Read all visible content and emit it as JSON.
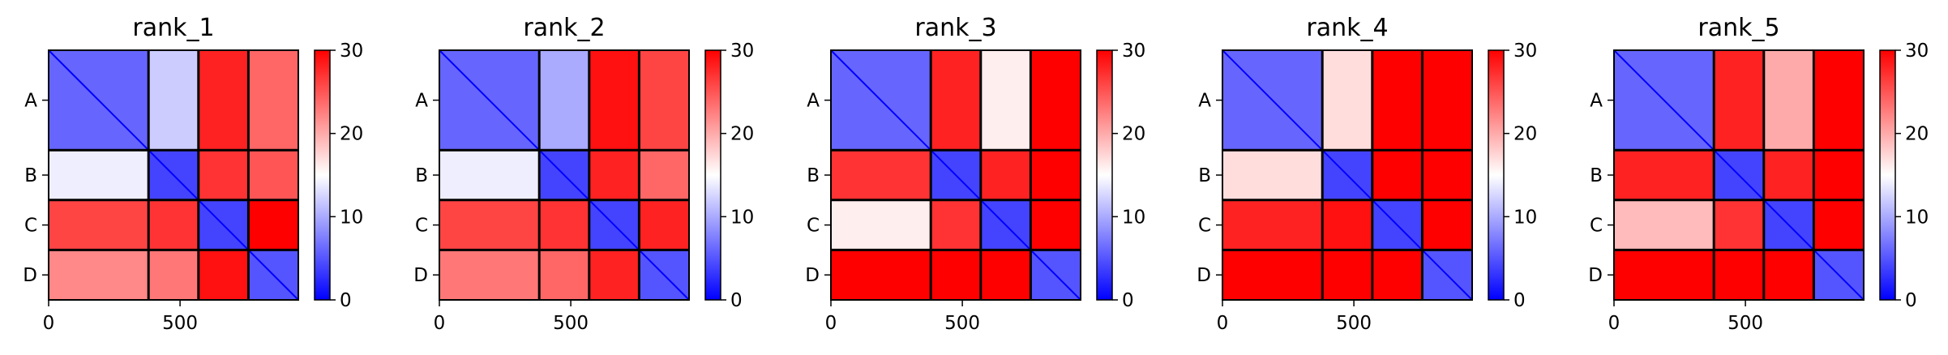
{
  "chart_data": [
    {
      "type": "heatmap",
      "title": "rank_1",
      "blocks": [
        "A",
        "B",
        "C",
        "D"
      ],
      "block_bounds": [
        0,
        380,
        570,
        760,
        950
      ],
      "xticks": [
        0,
        500
      ],
      "xlim": [
        0,
        950
      ],
      "colorbar": {
        "range": [
          0,
          30
        ],
        "ticks": [
          0,
          10,
          20,
          30
        ]
      },
      "block_values": [
        [
          6,
          12,
          28,
          24
        ],
        [
          14,
          4,
          27,
          25
        ],
        [
          26,
          27,
          4,
          30
        ],
        [
          22,
          23,
          29,
          5
        ]
      ]
    },
    {
      "type": "heatmap",
      "title": "rank_2",
      "blocks": [
        "A",
        "B",
        "C",
        "D"
      ],
      "block_bounds": [
        0,
        380,
        570,
        760,
        950
      ],
      "xticks": [
        0,
        500
      ],
      "xlim": [
        0,
        950
      ],
      "colorbar": {
        "range": [
          0,
          30
        ],
        "ticks": [
          0,
          10,
          20,
          30
        ]
      },
      "block_values": [
        [
          6,
          10,
          29,
          26
        ],
        [
          14,
          4,
          28,
          24
        ],
        [
          26,
          27,
          4,
          28
        ],
        [
          23,
          24,
          28,
          5
        ]
      ]
    },
    {
      "type": "heatmap",
      "title": "rank_3",
      "blocks": [
        "A",
        "B",
        "C",
        "D"
      ],
      "block_bounds": [
        0,
        380,
        570,
        760,
        950
      ],
      "xticks": [
        0,
        500
      ],
      "xlim": [
        0,
        950
      ],
      "colorbar": {
        "range": [
          0,
          30
        ],
        "ticks": [
          0,
          10,
          20,
          30
        ]
      },
      "block_values": [
        [
          6,
          28,
          16,
          30
        ],
        [
          27,
          4,
          28,
          30
        ],
        [
          16,
          27,
          4,
          30
        ],
        [
          30,
          30,
          30,
          5
        ]
      ]
    },
    {
      "type": "heatmap",
      "title": "rank_4",
      "blocks": [
        "A",
        "B",
        "C",
        "D"
      ],
      "block_bounds": [
        0,
        380,
        570,
        760,
        950
      ],
      "xticks": [
        0,
        500
      ],
      "xlim": [
        0,
        950
      ],
      "colorbar": {
        "range": [
          0,
          30
        ],
        "ticks": [
          0,
          10,
          20,
          30
        ]
      },
      "block_values": [
        [
          6,
          17,
          30,
          30
        ],
        [
          17,
          4,
          30,
          30
        ],
        [
          28,
          29,
          4,
          30
        ],
        [
          30,
          30,
          30,
          5
        ]
      ]
    },
    {
      "type": "heatmap",
      "title": "rank_5",
      "blocks": [
        "A",
        "B",
        "C",
        "D"
      ],
      "block_bounds": [
        0,
        380,
        570,
        760,
        950
      ],
      "xticks": [
        0,
        500
      ],
      "xlim": [
        0,
        950
      ],
      "colorbar": {
        "range": [
          0,
          30
        ],
        "ticks": [
          0,
          10,
          20,
          30
        ]
      },
      "block_values": [
        [
          6,
          28,
          20,
          30
        ],
        [
          28,
          4,
          28,
          30
        ],
        [
          19,
          27,
          4,
          30
        ],
        [
          30,
          30,
          30,
          5
        ]
      ]
    }
  ]
}
